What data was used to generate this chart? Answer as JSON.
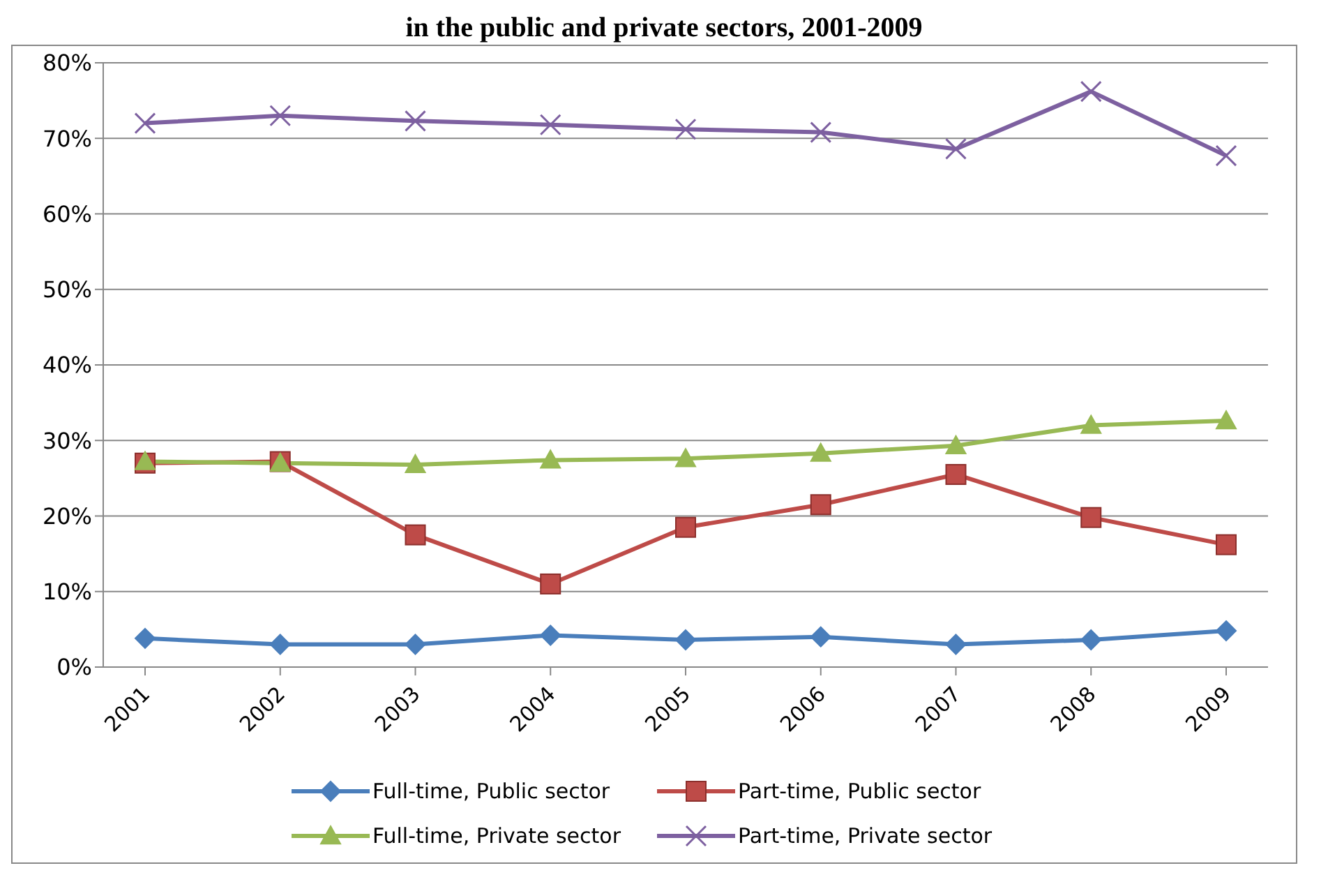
{
  "chart_data": {
    "type": "line",
    "title": "in the public and private sectors, 2001-2009",
    "categories": [
      "2001",
      "2002",
      "2003",
      "2004",
      "2005",
      "2006",
      "2007",
      "2008",
      "2009"
    ],
    "series": [
      {
        "name": "Full-time, Public sector",
        "color": "#4a7ebb",
        "marker": "diamond",
        "values": [
          3.8,
          3.0,
          3.0,
          4.2,
          3.6,
          4.0,
          3.0,
          3.6,
          4.8
        ]
      },
      {
        "name": "Part-time, Public sector",
        "color": "#be4b48",
        "marker": "square",
        "values": [
          27,
          27.2,
          17.5,
          11,
          18.5,
          21.5,
          25.5,
          19.8,
          16.2
        ]
      },
      {
        "name": "Full-time, Private sector",
        "color": "#98b954",
        "marker": "triangle",
        "values": [
          27.2,
          27,
          26.8,
          27.4,
          27.6,
          28.3,
          29.3,
          32,
          32.6
        ]
      },
      {
        "name": "Part-time, Private sector",
        "color": "#7d60a0",
        "marker": "cross",
        "values": [
          72,
          73,
          72.3,
          71.8,
          71.2,
          70.8,
          68.6,
          76.2,
          67.7
        ]
      }
    ],
    "ylim": [
      0,
      80
    ],
    "yticks": [
      {
        "value": 0,
        "label": "0%"
      },
      {
        "value": 10,
        "label": "10%"
      },
      {
        "value": 20,
        "label": "20%"
      },
      {
        "value": 30,
        "label": "30%"
      },
      {
        "value": 40,
        "label": "40%"
      },
      {
        "value": 50,
        "label": "50%"
      },
      {
        "value": 60,
        "label": "60%"
      },
      {
        "value": 70,
        "label": "70%"
      },
      {
        "value": 80,
        "label": "80%"
      }
    ],
    "grid": "y",
    "legend": "bottom",
    "line_style": "solid"
  }
}
